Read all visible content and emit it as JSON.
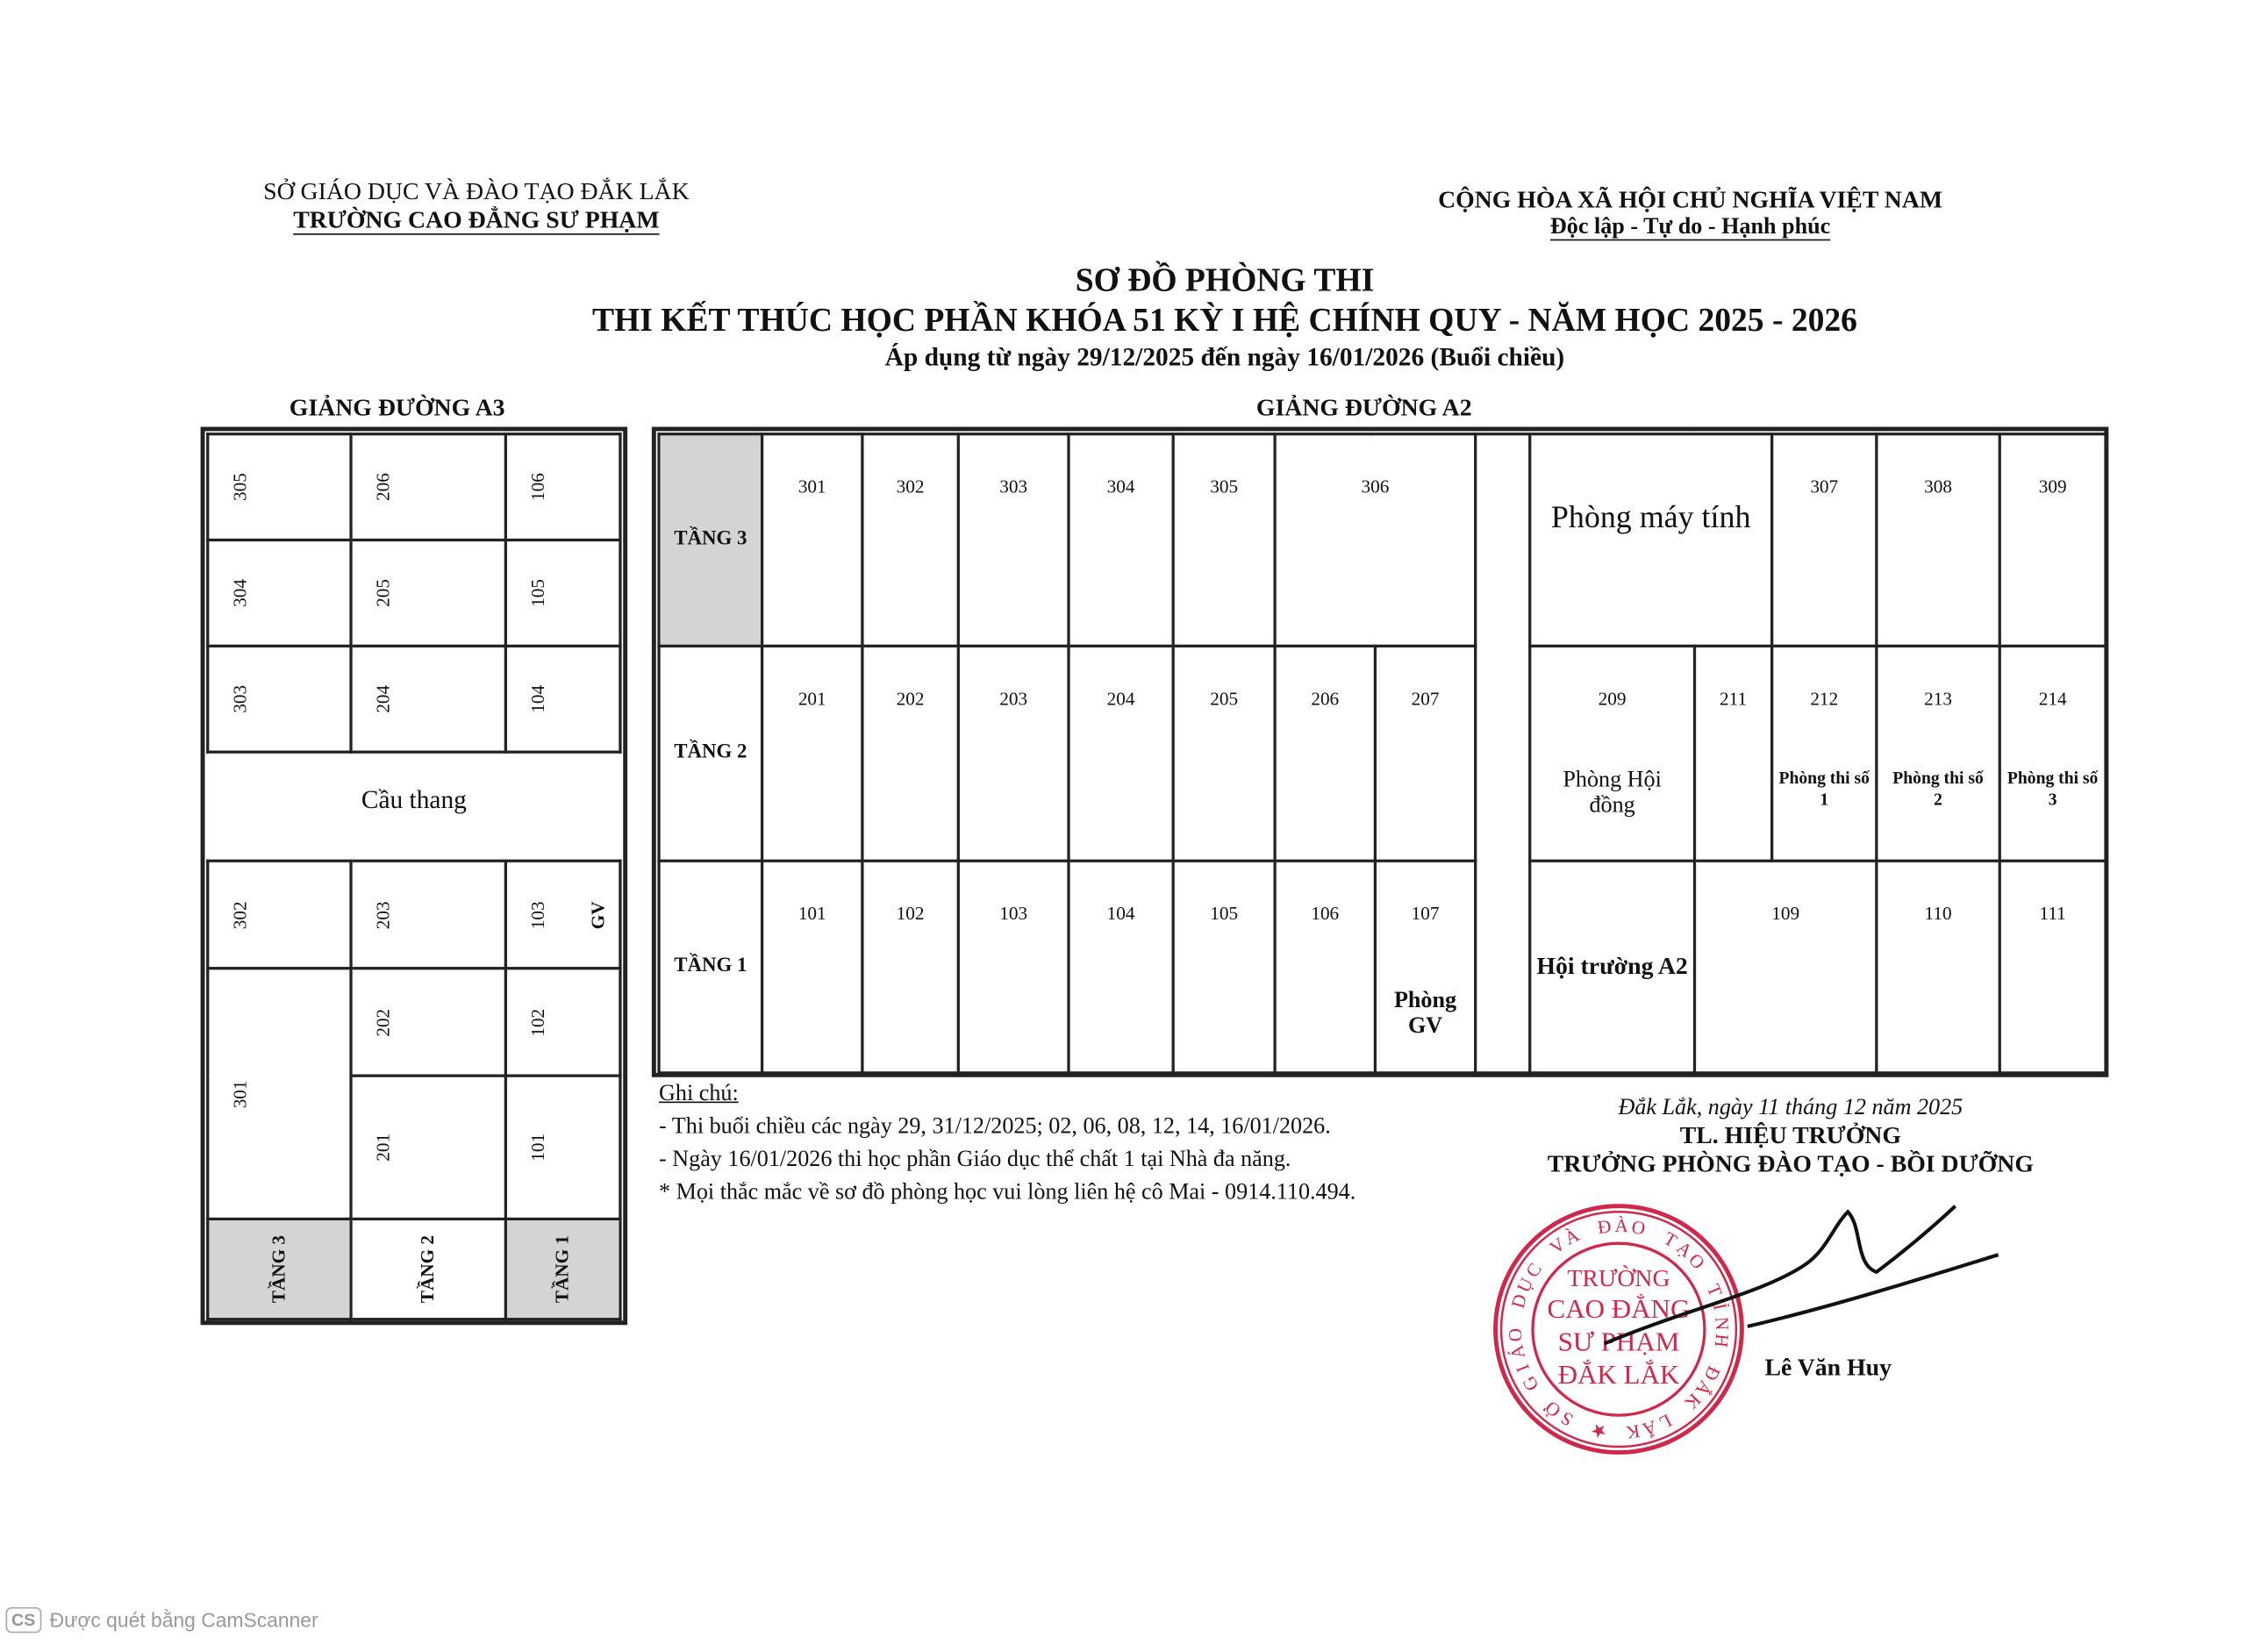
{
  "header_left": {
    "line1": "SỞ GIÁO DỤC VÀ ĐÀO TẠO ĐẮK LẮK",
    "line2": "TRƯỜNG CAO ĐẲNG SƯ PHẠM"
  },
  "header_right": {
    "line1": "CỘNG HÒA XÃ HỘI CHỦ NGHĨA VIỆT NAM",
    "line2": "Độc lập - Tự do - Hạnh phúc"
  },
  "title": {
    "main": "SƠ ĐỒ PHÒNG THI",
    "sub": "THI KẾT THÚC HỌC PHẦN KHÓA 51 KỲ I HỆ CHÍNH QUY - NĂM HỌC 2025 - 2026",
    "applied": "Áp dụng từ ngày 29/12/2025 đến ngày 16/01/2026 (Buổi chiều)"
  },
  "a3": {
    "title": "GIẢNG ĐƯỜNG A3",
    "upper": [
      [
        "305",
        "206",
        "106"
      ],
      [
        "304",
        "205",
        "105"
      ],
      [
        "303",
        "204",
        "104"
      ]
    ],
    "stairs": "Cầu thang",
    "lower": {
      "r1": [
        "302",
        "203",
        "103"
      ],
      "gv": "GV",
      "c301": "301",
      "r2": [
        "202",
        "102"
      ],
      "r3": [
        "201",
        "101"
      ]
    },
    "floors": [
      "TẦNG 3",
      "TẦNG 2",
      "TẦNG 1"
    ]
  },
  "a2": {
    "title": "GIẢNG ĐƯỜNG A2",
    "floor3": {
      "label": "TẦNG 3",
      "rooms": [
        "301",
        "302",
        "303",
        "304",
        "305",
        "306"
      ],
      "computer_room": "Phòng máy tính",
      "right": [
        "307",
        "308",
        "309"
      ]
    },
    "floor2": {
      "label": "TẦNG 2",
      "rooms": [
        "201",
        "202",
        "203",
        "204",
        "205",
        "206",
        "207"
      ],
      "r209": "209",
      "r209_name": "Phòng Hội đồng",
      "r211": "211",
      "right": [
        {
          "no": "212",
          "name": "Phòng thi số 1"
        },
        {
          "no": "213",
          "name": "Phòng thi số 2"
        },
        {
          "no": "214",
          "name": "Phòng thi số 3"
        }
      ]
    },
    "floor1": {
      "label": "TẦNG 1",
      "rooms": [
        "101",
        "102",
        "103",
        "104",
        "105",
        "106",
        "107"
      ],
      "r107_name": "Phòng GV",
      "hall": "Hội trường A2",
      "right": [
        "109",
        "110",
        "111"
      ]
    }
  },
  "notes": {
    "title": "Ghi chú:",
    "items": [
      "- Thi buổi chiều các ngày 29, 31/12/2025; 02, 06, 08, 12, 14, 16/01/2026.",
      "- Ngày 16/01/2026 thi học phần Giáo dục thể chất 1 tại Nhà đa năng.",
      "* Mọi thắc mắc về sơ đồ phòng học vui lòng liên hệ cô Mai - 0914.110.494."
    ]
  },
  "signature": {
    "date": "Đắk Lắk, ngày 11 tháng 12 năm 2025",
    "role1": "TL. HIỆU TRƯỞNG",
    "role2": "TRƯỞNG PHÒNG ĐÀO TẠO - BỒI DƯỠNG",
    "name": "Lê Văn Huy"
  },
  "stamp": {
    "ring": "SỞ GIÁO DỤC VÀ ĐÀO TẠO TỈNH ĐẮK LẮK",
    "center": [
      "TRƯỜNG",
      "CAO ĐẲNG",
      "SƯ PHẠM",
      "ĐẮK LẮK"
    ],
    "color": "#d0284a"
  },
  "watermark": {
    "badge": "CS",
    "text": "Được quét bằng CamScanner"
  },
  "colors": {
    "floor_shade": "#d4d4d4"
  }
}
